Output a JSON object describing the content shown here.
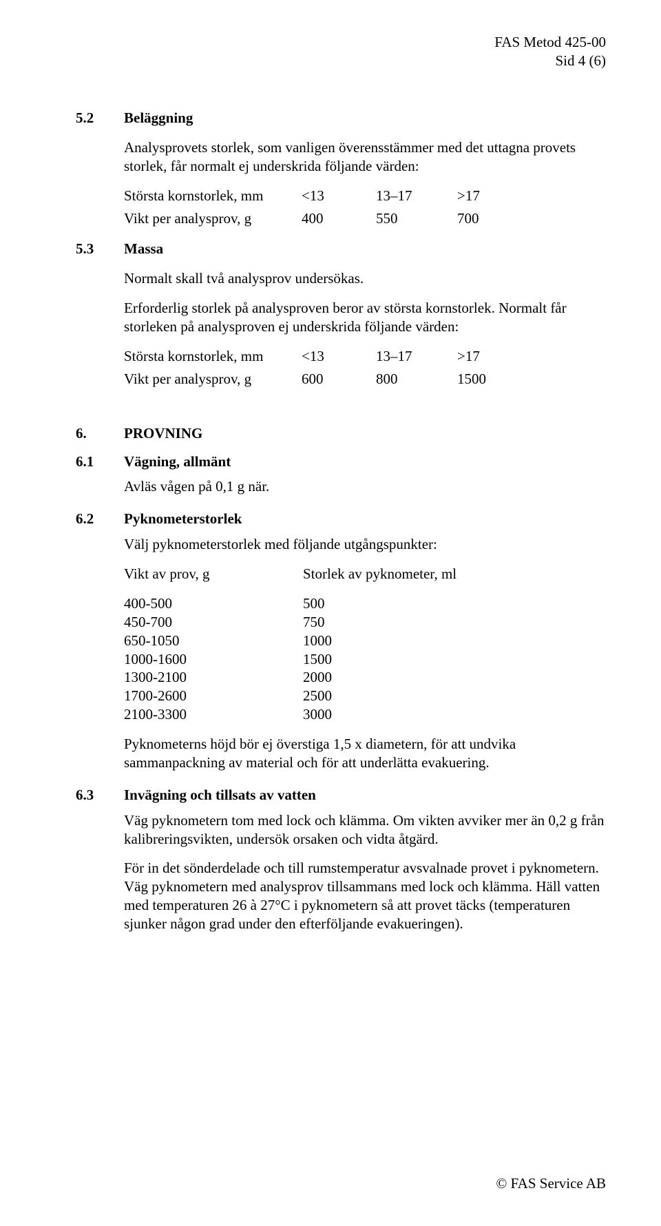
{
  "header": {
    "doc_id": "FAS Metod 425-00",
    "page_label": "Sid 4 (6)"
  },
  "s52": {
    "num": "5.2",
    "title": "Beläggning",
    "p1": "Analysprovets storlek, som vanligen överensstämmer med det uttagna provets storlek, får normalt ej underskrida följande värden:",
    "row1": {
      "label": "Största kornstorlek, mm",
      "c1": "<13",
      "c2": "13–17",
      "c3": ">17"
    },
    "row2": {
      "label": "Vikt per analysprov, g",
      "c1": "400",
      "c2": "550",
      "c3": "700"
    }
  },
  "s53": {
    "num": "5.3",
    "title": "Massa",
    "p1": "Normalt skall två analysprov undersökas.",
    "p2": "Erforderlig storlek på analysproven beror av största kornstorlek. Normalt får storleken på analysproven ej underskrida följande värden:",
    "row1": {
      "label": "Största kornstorlek, mm",
      "c1": "<13",
      "c2": "13–17",
      "c3": ">17"
    },
    "row2": {
      "label": "Vikt per analysprov, g",
      "c1": "600",
      "c2": "800",
      "c3": "1500"
    }
  },
  "s6": {
    "num": "6.",
    "title": "PROVNING"
  },
  "s61": {
    "num": "6.1",
    "title": "Vägning, allmänt",
    "p1": "Avläs vågen på 0,1 g när."
  },
  "s62": {
    "num": "6.2",
    "title": "Pyknometerstorlek",
    "p1": "Välj pyknometerstorlek med följande utgångspunkter:",
    "col_a": "Vikt av prov, g",
    "col_b": "Storlek av pyknometer, ml",
    "rows": [
      {
        "a": "400-500",
        "b": "500"
      },
      {
        "a": "450-700",
        "b": "750"
      },
      {
        "a": "650-1050",
        "b": "1000"
      },
      {
        "a": "1000-1600",
        "b": "1500"
      },
      {
        "a": "1300-2100",
        "b": "2000"
      },
      {
        "a": "1700-2600",
        "b": "2500"
      },
      {
        "a": "2100-3300",
        "b": "3000"
      }
    ],
    "p2": "Pyknometerns höjd bör ej överstiga 1,5 x diametern, för att undvika sammanpackning av material och för att underlätta evakuering."
  },
  "s63": {
    "num": "6.3",
    "title": "Invägning och tillsats av vatten",
    "p1": "Väg pyknometern tom med lock och klämma. Om vikten avviker mer än 0,2 g från kalibreringsvikten, undersök orsaken och vidta åtgärd.",
    "p2": "För in det sönderdelade och till rumstemperatur avsvalnade provet i pyknometern. Väg pyknometern med analysprov tillsammans med lock och klämma. Häll vatten med temperaturen 26 à 27°C i pyknometern så att provet täcks (temperaturen sjunker någon grad under den efterföljande evakueringen)."
  },
  "footer": {
    "text": "© FAS Service AB"
  }
}
